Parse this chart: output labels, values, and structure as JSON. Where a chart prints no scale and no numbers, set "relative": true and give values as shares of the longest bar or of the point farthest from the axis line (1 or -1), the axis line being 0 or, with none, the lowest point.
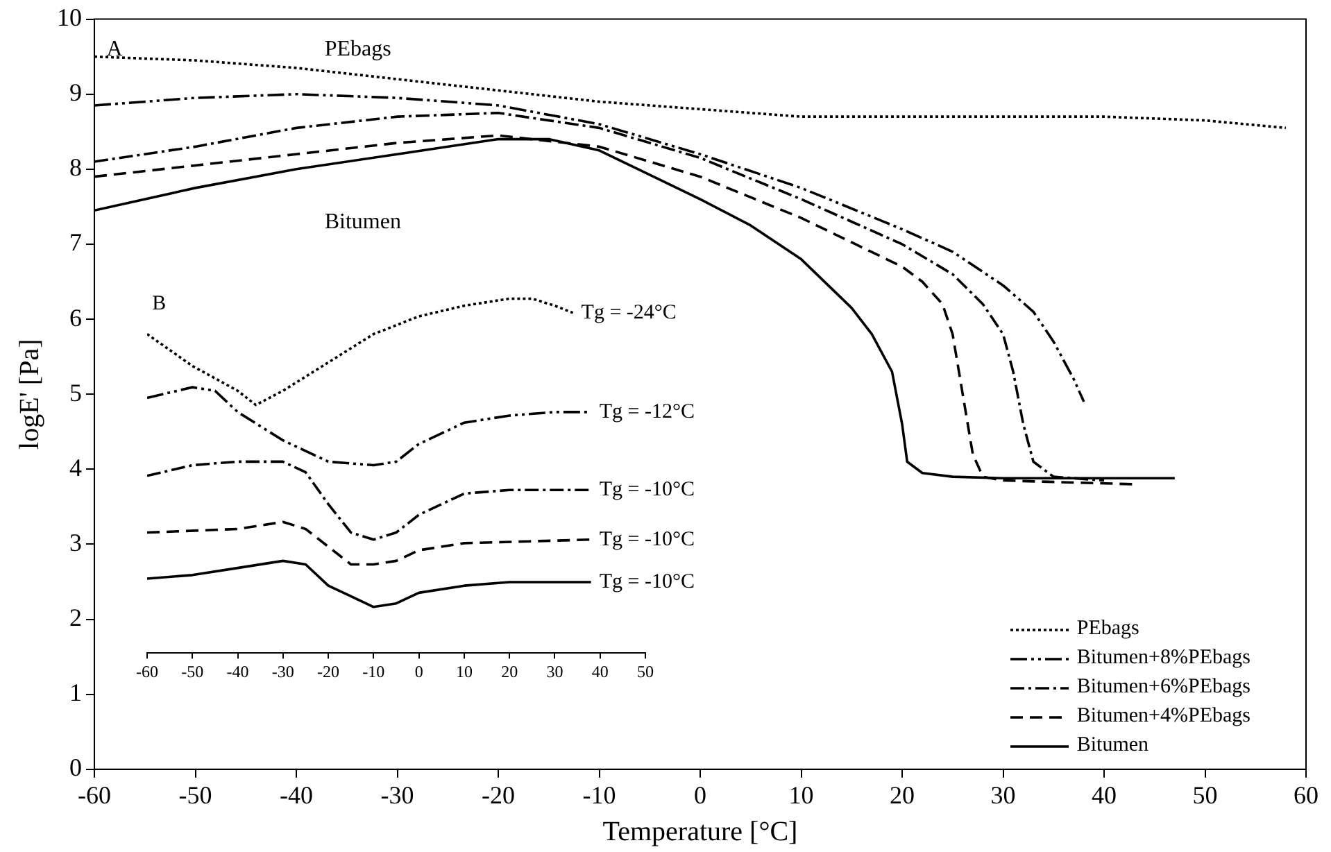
{
  "chart_data": [
    {
      "type": "line",
      "xlabel": "Temperature [°C]",
      "ylabel": "logE' [Pa]",
      "xlim": [
        -60,
        60
      ],
      "xticks": [
        -60,
        -50,
        -40,
        -30,
        -20,
        -10,
        0,
        10,
        20,
        30,
        40,
        50,
        60
      ],
      "ylim": [
        0,
        10
      ],
      "yticks": [
        0,
        1,
        2,
        3,
        4,
        5,
        6,
        7,
        8,
        9,
        10
      ],
      "grid": false,
      "legend": "bottom right",
      "marker": "none",
      "annotations": [
        "A",
        "PEbags",
        "Bitumen"
      ],
      "series": [
        {
          "name": "PEbags",
          "color": "#000000",
          "line_style": "dotted",
          "x": [
            -60,
            -50,
            -40,
            -30,
            -20,
            -10,
            0,
            10,
            20,
            30,
            40,
            50,
            58
          ],
          "values": [
            9.5,
            9.45,
            9.35,
            9.2,
            9.05,
            8.9,
            8.8,
            8.7,
            8.7,
            8.7,
            8.7,
            8.65,
            8.55
          ]
        },
        {
          "name": "Bitumen+8%PEbags",
          "color": "#000000",
          "line_style": "dashed",
          "x": [
            -60,
            -50,
            -40,
            -30,
            -20,
            -10,
            0,
            10,
            20,
            25,
            30,
            33,
            35,
            37,
            38
          ],
          "values": [
            8.85,
            8.95,
            9.0,
            8.95,
            8.85,
            8.6,
            8.2,
            7.75,
            7.2,
            6.9,
            6.45,
            6.1,
            5.7,
            5.2,
            4.9
          ]
        },
        {
          "name": "Bitumen+6%PEbags",
          "color": "#000000",
          "line_style": "dashed",
          "x": [
            -60,
            -50,
            -40,
            -30,
            -20,
            -10,
            0,
            10,
            20,
            25,
            28,
            30,
            31,
            32,
            33,
            35,
            40
          ],
          "values": [
            8.1,
            8.3,
            8.55,
            8.7,
            8.75,
            8.55,
            8.15,
            7.6,
            7.0,
            6.6,
            6.2,
            5.8,
            5.3,
            4.6,
            4.1,
            3.9,
            3.85
          ]
        },
        {
          "name": "Bitumen+4%PEbags",
          "color": "#000000",
          "line_style": "dashed",
          "x": [
            -60,
            -50,
            -40,
            -30,
            -20,
            -10,
            0,
            10,
            20,
            22,
            24,
            25,
            26,
            27,
            28,
            30,
            43
          ],
          "values": [
            7.9,
            8.05,
            8.2,
            8.35,
            8.45,
            8.3,
            7.9,
            7.35,
            6.7,
            6.5,
            6.2,
            5.8,
            5.0,
            4.2,
            3.9,
            3.85,
            3.8
          ]
        },
        {
          "name": "Bitumen",
          "color": "#000000",
          "line_style": "solid",
          "x": [
            -60,
            -50,
            -40,
            -30,
            -20,
            -15,
            -10,
            0,
            5,
            10,
            15,
            17,
            19,
            20,
            20.5,
            22,
            25,
            30,
            47
          ],
          "values": [
            7.45,
            7.75,
            8.0,
            8.2,
            8.4,
            8.4,
            8.25,
            7.6,
            7.25,
            6.8,
            6.15,
            5.8,
            5.3,
            4.6,
            4.1,
            3.95,
            3.9,
            3.88,
            3.88
          ]
        }
      ]
    },
    {
      "type": "line",
      "relative": true,
      "xlim": [
        -60,
        50
      ],
      "xticks": [
        -60,
        -50,
        -40,
        -30,
        -20,
        -10,
        0,
        10,
        20,
        30,
        40,
        50
      ],
      "grid": false,
      "marker": "none",
      "annotations": [
        "B",
        "Tg = -24°C",
        "Tg = -12°C",
        "Tg = -10°C",
        "Tg = -10°C",
        "Tg = -10°C"
      ],
      "series": [
        {
          "color": "#000000",
          "line_style": "dotted",
          "x": [
            -60,
            -50,
            -40,
            -36,
            -30,
            -20,
            -10,
            0,
            10,
            20,
            25,
            30,
            34
          ],
          "values": [
            0.9,
            0.81,
            0.74,
            0.7,
            0.74,
            0.82,
            0.9,
            0.95,
            0.98,
            1,
            1,
            0.98,
            0.96
          ]
        },
        {
          "color": "#000000",
          "line_style": "dashed",
          "x": [
            -60,
            -50,
            -45,
            -40,
            -30,
            -20,
            -10,
            -5,
            0,
            10,
            20,
            30,
            38
          ],
          "values": [
            0.72,
            0.75,
            0.74,
            0.68,
            0.6,
            0.54,
            0.53,
            0.54,
            0.59,
            0.65,
            0.67,
            0.68,
            0.68
          ]
        },
        {
          "color": "#000000",
          "line_style": "dashed",
          "x": [
            -60,
            -50,
            -40,
            -30,
            -25,
            -20,
            -15,
            -10,
            -5,
            0,
            10,
            20,
            38
          ],
          "values": [
            0.5,
            0.53,
            0.54,
            0.54,
            0.51,
            0.42,
            0.34,
            0.32,
            0.34,
            0.39,
            0.45,
            0.46,
            0.46
          ]
        },
        {
          "color": "#000000",
          "line_style": "dashed",
          "x": [
            -60,
            -40,
            -30,
            -25,
            -20,
            -15,
            -10,
            -5,
            0,
            10,
            38
          ],
          "values": [
            0.34,
            0.35,
            0.37,
            0.35,
            0.3,
            0.25,
            0.25,
            0.26,
            0.29,
            0.31,
            0.32
          ]
        },
        {
          "color": "#000000",
          "line_style": "solid",
          "x": [
            -60,
            -50,
            -40,
            -30,
            -25,
            -20,
            -15,
            -10,
            -5,
            0,
            10,
            20,
            38
          ],
          "values": [
            0.21,
            0.22,
            0.24,
            0.26,
            0.25,
            0.19,
            0.16,
            0.13,
            0.14,
            0.17,
            0.19,
            0.2,
            0.2
          ]
        }
      ]
    }
  ]
}
